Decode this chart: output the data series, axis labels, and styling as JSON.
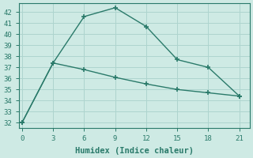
{
  "xlabel": "Humidex (Indice chaleur)",
  "background_color": "#ceeae4",
  "grid_color": "#aed4ce",
  "line_color": "#2a7a6a",
  "x_ticks": [
    0,
    3,
    6,
    9,
    12,
    15,
    18,
    21
  ],
  "xlim": [
    -0.3,
    22
  ],
  "ylim": [
    31.5,
    42.8
  ],
  "y_ticks": [
    32,
    33,
    34,
    35,
    36,
    37,
    38,
    39,
    40,
    41,
    42
  ],
  "line1_x": [
    0,
    3,
    6,
    9,
    12,
    15,
    18,
    21
  ],
  "line1_y": [
    32.0,
    37.4,
    41.6,
    42.4,
    40.7,
    37.7,
    37.0,
    34.4
  ],
  "line2_x": [
    0,
    3,
    6,
    9,
    12,
    15,
    18,
    21
  ],
  "line2_y": [
    32.0,
    37.4,
    36.8,
    36.1,
    35.5,
    35.0,
    34.7,
    34.4
  ],
  "tick_fontsize": 6.5,
  "xlabel_fontsize": 7.5,
  "spine_color": "#2a7a6a"
}
